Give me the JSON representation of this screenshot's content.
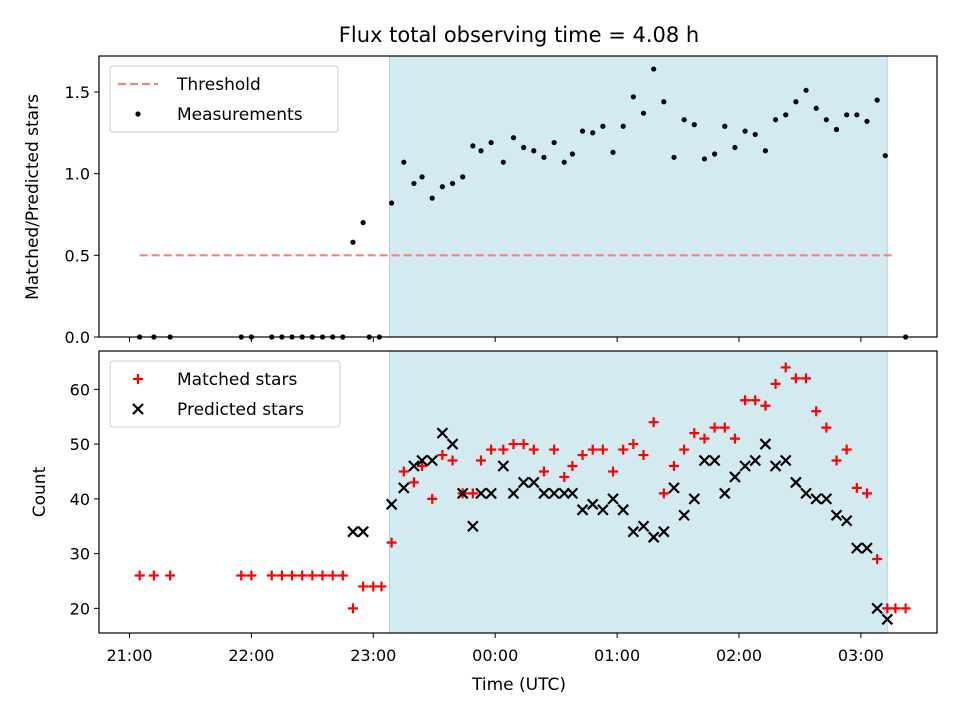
{
  "chart_data": {
    "type": "scatter",
    "title": "Flux total observing time = 4.08 h",
    "xlabel": "Time (UTC)",
    "x_tick_labels": [
      "21:00",
      "22:00",
      "23:00",
      "00:00",
      "01:00",
      "02:00",
      "03:00"
    ],
    "x_tick_hours": [
      0,
      1,
      2,
      3,
      4,
      5,
      6
    ],
    "x_origin": "21:00",
    "observing_window": [
      "23:08",
      "03:13"
    ],
    "observing_window_color": "#d3eaf0",
    "panels": [
      {
        "ylabel": "Matched/Predicted stars",
        "ylim": [
          0,
          1.72
        ],
        "y_ticks": [
          0.0,
          0.5,
          1.0,
          1.5
        ],
        "y_tick_labels": [
          "0.0",
          "0.5",
          "1.0",
          "1.5"
        ],
        "legend": {
          "position": "top-left",
          "entries": [
            "Threshold",
            "Measurements"
          ]
        },
        "threshold": {
          "name": "Threshold",
          "value": 0.5,
          "x_range": [
            "21:05",
            "03:17"
          ],
          "color": "#ff7f7f",
          "style": "dashed"
        },
        "series": [
          {
            "name": "Measurements",
            "color": "#000000",
            "marker": "dot",
            "points": [
              [
                "21:05",
                0.0
              ],
              [
                "21:12",
                0.0
              ],
              [
                "21:20",
                0.0
              ],
              [
                "21:55",
                0.0
              ],
              [
                "22:00",
                0.0
              ],
              [
                "22:10",
                0.0
              ],
              [
                "22:15",
                0.0
              ],
              [
                "22:20",
                0.0
              ],
              [
                "22:25",
                0.0
              ],
              [
                "22:30",
                0.0
              ],
              [
                "22:35",
                0.0
              ],
              [
                "22:40",
                0.0
              ],
              [
                "22:45",
                0.0
              ],
              [
                "22:50",
                0.58
              ],
              [
                "22:55",
                0.7
              ],
              [
                "22:58",
                0.0
              ],
              [
                "23:03",
                0.0
              ],
              [
                "23:09",
                0.82
              ],
              [
                "23:15",
                1.07
              ],
              [
                "23:20",
                0.94
              ],
              [
                "23:24",
                0.98
              ],
              [
                "23:29",
                0.85
              ],
              [
                "23:34",
                0.92
              ],
              [
                "23:39",
                0.94
              ],
              [
                "23:44",
                0.98
              ],
              [
                "23:49",
                1.17
              ],
              [
                "23:53",
                1.14
              ],
              [
                "23:58",
                1.19
              ],
              [
                "00:04",
                1.07
              ],
              [
                "00:09",
                1.22
              ],
              [
                "00:14",
                1.16
              ],
              [
                "00:19",
                1.14
              ],
              [
                "00:24",
                1.1
              ],
              [
                "00:29",
                1.19
              ],
              [
                "00:34",
                1.07
              ],
              [
                "00:38",
                1.12
              ],
              [
                "00:43",
                1.26
              ],
              [
                "00:48",
                1.25
              ],
              [
                "00:53",
                1.29
              ],
              [
                "00:58",
                1.13
              ],
              [
                "01:03",
                1.29
              ],
              [
                "01:08",
                1.47
              ],
              [
                "01:13",
                1.37
              ],
              [
                "01:18",
                1.64
              ],
              [
                "01:23",
                1.44
              ],
              [
                "01:28",
                1.1
              ],
              [
                "01:33",
                1.33
              ],
              [
                "01:38",
                1.3
              ],
              [
                "01:43",
                1.09
              ],
              [
                "01:48",
                1.12
              ],
              [
                "01:53",
                1.29
              ],
              [
                "01:58",
                1.16
              ],
              [
                "02:03",
                1.26
              ],
              [
                "02:08",
                1.24
              ],
              [
                "02:13",
                1.14
              ],
              [
                "02:18",
                1.33
              ],
              [
                "02:23",
                1.36
              ],
              [
                "02:28",
                1.44
              ],
              [
                "02:33",
                1.51
              ],
              [
                "02:38",
                1.4
              ],
              [
                "02:43",
                1.33
              ],
              [
                "02:48",
                1.27
              ],
              [
                "02:53",
                1.36
              ],
              [
                "02:58",
                1.36
              ],
              [
                "03:03",
                1.32
              ],
              [
                "03:08",
                1.45
              ],
              [
                "03:12",
                1.11
              ],
              [
                "03:22",
                0.0
              ]
            ]
          }
        ]
      },
      {
        "ylabel": "Count",
        "ylim": [
          15.5,
          67
        ],
        "y_ticks": [
          20,
          30,
          40,
          50,
          60
        ],
        "y_tick_labels": [
          "20",
          "30",
          "40",
          "50",
          "60"
        ],
        "legend": {
          "position": "top-left",
          "entries": [
            "Matched stars",
            "Predicted stars"
          ]
        },
        "series": [
          {
            "name": "Matched stars",
            "color": "#ff0000",
            "marker": "plus",
            "points": [
              [
                "21:05",
                26
              ],
              [
                "21:12",
                26
              ],
              [
                "21:20",
                26
              ],
              [
                "21:55",
                26
              ],
              [
                "22:00",
                26
              ],
              [
                "22:10",
                26
              ],
              [
                "22:15",
                26
              ],
              [
                "22:20",
                26
              ],
              [
                "22:25",
                26
              ],
              [
                "22:30",
                26
              ],
              [
                "22:35",
                26
              ],
              [
                "22:40",
                26
              ],
              [
                "22:45",
                26
              ],
              [
                "22:50",
                20
              ],
              [
                "22:55",
                24
              ],
              [
                "23:00",
                24
              ],
              [
                "23:04",
                24
              ],
              [
                "23:09",
                32
              ],
              [
                "23:15",
                45
              ],
              [
                "23:20",
                43
              ],
              [
                "23:24",
                46
              ],
              [
                "23:29",
                40
              ],
              [
                "23:34",
                48
              ],
              [
                "23:39",
                47
              ],
              [
                "23:44",
                41
              ],
              [
                "23:49",
                41
              ],
              [
                "23:53",
                47
              ],
              [
                "23:58",
                49
              ],
              [
                "00:04",
                49
              ],
              [
                "00:09",
                50
              ],
              [
                "00:14",
                50
              ],
              [
                "00:19",
                49
              ],
              [
                "00:24",
                45
              ],
              [
                "00:29",
                49
              ],
              [
                "00:34",
                44
              ],
              [
                "00:38",
                46
              ],
              [
                "00:43",
                48
              ],
              [
                "00:48",
                49
              ],
              [
                "00:53",
                49
              ],
              [
                "00:58",
                45
              ],
              [
                "01:03",
                49
              ],
              [
                "01:08",
                50
              ],
              [
                "01:13",
                48
              ],
              [
                "01:18",
                54
              ],
              [
                "01:23",
                41
              ],
              [
                "01:28",
                46
              ],
              [
                "01:33",
                49
              ],
              [
                "01:38",
                52
              ],
              [
                "01:43",
                51
              ],
              [
                "01:48",
                53
              ],
              [
                "01:53",
                53
              ],
              [
                "01:58",
                51
              ],
              [
                "02:03",
                58
              ],
              [
                "02:08",
                58
              ],
              [
                "02:13",
                57
              ],
              [
                "02:18",
                61
              ],
              [
                "02:23",
                64
              ],
              [
                "02:28",
                62
              ],
              [
                "02:33",
                62
              ],
              [
                "02:38",
                56
              ],
              [
                "02:43",
                53
              ],
              [
                "02:48",
                47
              ],
              [
                "02:53",
                49
              ],
              [
                "02:58",
                42
              ],
              [
                "03:03",
                41
              ],
              [
                "03:08",
                29
              ],
              [
                "03:13",
                20
              ],
              [
                "03:17",
                20
              ],
              [
                "03:22",
                20
              ]
            ]
          },
          {
            "name": "Predicted stars",
            "color": "#000000",
            "marker": "x",
            "points": [
              [
                "22:50",
                34
              ],
              [
                "22:55",
                34
              ],
              [
                "23:09",
                39
              ],
              [
                "23:15",
                42
              ],
              [
                "23:20",
                46
              ],
              [
                "23:24",
                47
              ],
              [
                "23:29",
                47
              ],
              [
                "23:34",
                52
              ],
              [
                "23:39",
                50
              ],
              [
                "23:44",
                41
              ],
              [
                "23:49",
                35
              ],
              [
                "23:53",
                41
              ],
              [
                "23:58",
                41
              ],
              [
                "00:04",
                46
              ],
              [
                "00:09",
                41
              ],
              [
                "00:14",
                43
              ],
              [
                "00:19",
                43
              ],
              [
                "00:24",
                41
              ],
              [
                "00:29",
                41
              ],
              [
                "00:34",
                41
              ],
              [
                "00:38",
                41
              ],
              [
                "00:43",
                38
              ],
              [
                "00:48",
                39
              ],
              [
                "00:53",
                38
              ],
              [
                "00:58",
                40
              ],
              [
                "01:03",
                38
              ],
              [
                "01:08",
                34
              ],
              [
                "01:13",
                35
              ],
              [
                "01:18",
                33
              ],
              [
                "01:23",
                34
              ],
              [
                "01:28",
                42
              ],
              [
                "01:33",
                37
              ],
              [
                "01:38",
                40
              ],
              [
                "01:43",
                47
              ],
              [
                "01:48",
                47
              ],
              [
                "01:53",
                41
              ],
              [
                "01:58",
                44
              ],
              [
                "02:03",
                46
              ],
              [
                "02:08",
                47
              ],
              [
                "02:13",
                50
              ],
              [
                "02:18",
                46
              ],
              [
                "02:23",
                47
              ],
              [
                "02:28",
                43
              ],
              [
                "02:33",
                41
              ],
              [
                "02:38",
                40
              ],
              [
                "02:43",
                40
              ],
              [
                "02:48",
                37
              ],
              [
                "02:53",
                36
              ],
              [
                "02:58",
                31
              ],
              [
                "03:03",
                31
              ],
              [
                "03:08",
                20
              ],
              [
                "03:13",
                18
              ]
            ]
          }
        ]
      }
    ]
  }
}
